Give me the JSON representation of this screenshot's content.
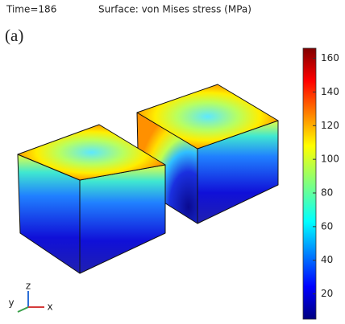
{
  "header": {
    "time": "Time=186",
    "title": "Surface: von Mises stress (MPa)"
  },
  "panel_label": "(a)",
  "colorbar": {
    "range": [
      5,
      166
    ],
    "ticks": [
      20,
      40,
      60,
      80,
      100,
      120,
      140,
      160
    ]
  },
  "triad": {
    "z": "z",
    "y": "y",
    "x": "x"
  }
}
